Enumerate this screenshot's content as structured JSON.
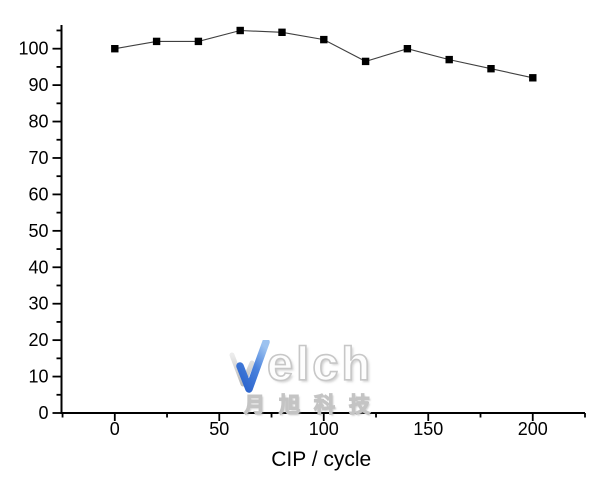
{
  "chart_data": {
    "type": "line",
    "title": "",
    "xlabel": "CIP / cycle",
    "ylabel": "",
    "x": [
      0,
      20,
      40,
      60,
      80,
      100,
      120,
      140,
      160,
      180,
      200
    ],
    "series": [
      {
        "name": "",
        "values": [
          100,
          102,
          102,
          105,
          104.5,
          102.5,
          96.5,
          100,
          97,
          94.5,
          92
        ]
      }
    ],
    "xlim": [
      -25.5,
      225
    ],
    "ylim": [
      0,
      106.5
    ],
    "x_major_ticks": [
      0,
      50,
      100,
      150,
      200
    ],
    "x_minor_ticks": [
      -25,
      25,
      75,
      125,
      175,
      225
    ],
    "y_major_ticks": [
      0,
      10,
      20,
      30,
      40,
      50,
      60,
      70,
      80,
      90,
      100
    ],
    "y_minor_ticks": [
      5,
      15,
      25,
      35,
      45,
      55,
      65,
      75,
      85,
      95,
      105
    ],
    "grid": false,
    "legend": false,
    "marker": "filled-square",
    "marker_size": 7.4,
    "marker_color": "#000000",
    "line_color": "#3f3f3f",
    "axis_color": "#000000",
    "tick_label_color": "#000000",
    "tick_label_font_px": 18,
    "axis_label_font_px": 21
  },
  "watermark": {
    "brand": "Welch",
    "brand_tail": "elch",
    "subtitle": "月旭科技",
    "check_blue_top": "#9cc2f0",
    "check_blue_bottom": "#2a63cc",
    "check_silver_top": "#ececec",
    "check_silver_bottom": "#b9b9b9",
    "outline_gray": "#c7c7c7"
  }
}
